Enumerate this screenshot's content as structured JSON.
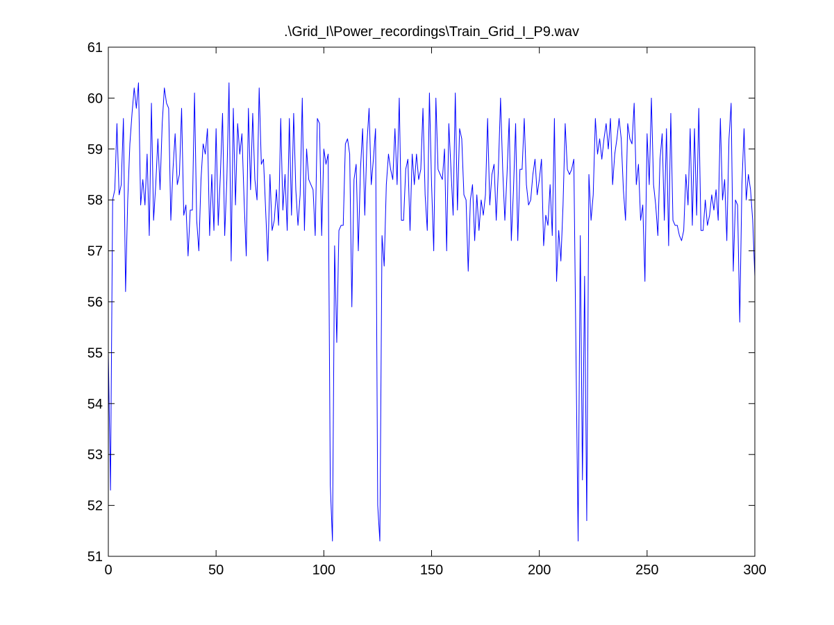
{
  "chart_data": {
    "type": "line",
    "title": ".\\Grid_I\\Power_recordings\\Train_Grid_I_P9.wav",
    "xlabel": "",
    "ylabel": "",
    "xlim": [
      0,
      300
    ],
    "ylim": [
      51,
      61
    ],
    "xticks": [
      0,
      50,
      100,
      150,
      200,
      250,
      300
    ],
    "yticks": [
      51,
      52,
      53,
      54,
      55,
      56,
      57,
      58,
      59,
      60,
      61
    ],
    "grid": false,
    "colors": {
      "line": "#0000ff",
      "axes": "#000000",
      "background": "#ffffff"
    },
    "series": [
      {
        "x": [
          0,
          1,
          2,
          3,
          4,
          5,
          6,
          7,
          8,
          9,
          10,
          11,
          12,
          13,
          14,
          15,
          16,
          17,
          18,
          19,
          20,
          21,
          22,
          23,
          24,
          25,
          26,
          27,
          28,
          29,
          30,
          31,
          32,
          33,
          34,
          35,
          36,
          37,
          38,
          39,
          40,
          41,
          42,
          43,
          44,
          45,
          46,
          47,
          48,
          49,
          50,
          51,
          52,
          53,
          54,
          55,
          56,
          57,
          58,
          59,
          60,
          61,
          62,
          63,
          64,
          65,
          66,
          67,
          68,
          69,
          70,
          71,
          72,
          73,
          74,
          75,
          76,
          77,
          78,
          79,
          80,
          81,
          82,
          83,
          84,
          85,
          86,
          87,
          88,
          89,
          90,
          91,
          92,
          93,
          94,
          95,
          96,
          97,
          98,
          99,
          100,
          101,
          102,
          103,
          104,
          105,
          106,
          107,
          108,
          109,
          110,
          111,
          112,
          113,
          114,
          115,
          116,
          117,
          118,
          119,
          120,
          121,
          122,
          123,
          124,
          125,
          126,
          127,
          128,
          129,
          130,
          131,
          132,
          133,
          134,
          135,
          136,
          137,
          138,
          139,
          140,
          141,
          142,
          143,
          144,
          145,
          146,
          147,
          148,
          149,
          150,
          151,
          152,
          153,
          154,
          155,
          156,
          157,
          158,
          159,
          160,
          161,
          162,
          163,
          164,
          165,
          166,
          167,
          168,
          169,
          170,
          171,
          172,
          173,
          174,
          175,
          176,
          177,
          178,
          179,
          180,
          181,
          182,
          183,
          184,
          185,
          186,
          187,
          188,
          189,
          190,
          191,
          192,
          193,
          194,
          195,
          196,
          197,
          198,
          199,
          200,
          201,
          202,
          203,
          204,
          205,
          206,
          207,
          208,
          209,
          210,
          211,
          212,
          213,
          214,
          215,
          216,
          217,
          218,
          219,
          220,
          221,
          222,
          223,
          224,
          225,
          226,
          227,
          228,
          229,
          230,
          231,
          232,
          233,
          234,
          235,
          236,
          237,
          238,
          239,
          240,
          241,
          242,
          243,
          244,
          245,
          246,
          247,
          248,
          249,
          250,
          251,
          252,
          253,
          254,
          255,
          256,
          257,
          258,
          259,
          260,
          261,
          262,
          263,
          264,
          265,
          266,
          267,
          268,
          269,
          270,
          271,
          272,
          273,
          274,
          275,
          276,
          277,
          278,
          279,
          280,
          281,
          282,
          283,
          284,
          285,
          286,
          287,
          288,
          289,
          290,
          291,
          292,
          293,
          294,
          295,
          296,
          297,
          298,
          299,
          300
        ],
        "values": [
          55.0,
          52.3,
          58.0,
          58.2,
          59.5,
          58.1,
          58.3,
          59.6,
          56.2,
          58.0,
          59.1,
          59.7,
          60.2,
          59.8,
          60.3,
          57.9,
          58.4,
          57.9,
          58.9,
          57.3,
          59.9,
          57.6,
          58.3,
          59.2,
          58.2,
          59.5,
          60.2,
          59.9,
          59.8,
          57.6,
          58.6,
          59.3,
          58.3,
          58.5,
          59.8,
          57.7,
          57.9,
          56.9,
          57.8,
          57.8,
          60.1,
          57.6,
          57.0,
          58.4,
          59.1,
          58.9,
          59.4,
          57.3,
          58.5,
          57.4,
          59.4,
          57.5,
          58.5,
          59.7,
          57.3,
          58.4,
          60.3,
          56.8,
          59.8,
          57.9,
          59.5,
          58.9,
          59.3,
          58.0,
          56.9,
          59.8,
          58.2,
          59.7,
          58.4,
          58.0,
          60.2,
          58.7,
          58.8,
          57.8,
          56.8,
          58.5,
          57.4,
          57.6,
          58.2,
          57.5,
          59.6,
          57.8,
          58.5,
          57.4,
          59.6,
          57.7,
          59.7,
          58.2,
          57.5,
          58.1,
          60.0,
          57.4,
          59.0,
          58.4,
          58.3,
          58.2,
          57.3,
          59.6,
          59.5,
          57.3,
          59.0,
          58.7,
          58.9,
          52.4,
          51.3,
          57.1,
          55.2,
          57.4,
          57.5,
          57.5,
          59.1,
          59.2,
          58.9,
          55.9,
          58.4,
          58.7,
          57.0,
          58.6,
          59.4,
          57.7,
          59.1,
          59.8,
          58.3,
          58.8,
          59.4,
          52.0,
          51.3,
          57.3,
          56.7,
          58.3,
          58.9,
          58.6,
          58.4,
          59.4,
          58.3,
          60.0,
          57.6,
          57.6,
          58.6,
          58.8,
          57.4,
          58.9,
          58.3,
          58.9,
          58.4,
          58.6,
          59.8,
          58.1,
          57.4,
          60.1,
          58.3,
          57.0,
          60.0,
          58.6,
          58.5,
          58.4,
          59.0,
          57.0,
          59.5,
          58.6,
          57.7,
          60.1,
          57.8,
          59.4,
          59.2,
          58.1,
          58.0,
          56.6,
          58.0,
          58.3,
          57.2,
          58.1,
          57.4,
          58.0,
          57.7,
          58.1,
          59.6,
          57.9,
          58.5,
          58.7,
          57.6,
          58.6,
          60.0,
          58.6,
          57.6,
          58.5,
          59.6,
          57.2,
          58.2,
          59.5,
          57.2,
          58.6,
          58.6,
          59.6,
          58.3,
          57.9,
          58.0,
          58.5,
          58.8,
          58.1,
          58.4,
          58.8,
          57.1,
          57.7,
          57.5,
          58.3,
          57.3,
          59.6,
          56.4,
          57.4,
          56.8,
          57.9,
          59.5,
          58.6,
          58.5,
          58.6,
          58.8,
          55.0,
          51.3,
          57.3,
          52.5,
          56.5,
          51.7,
          58.5,
          57.6,
          58.1,
          59.6,
          58.9,
          59.2,
          58.8,
          59.2,
          59.5,
          59.0,
          59.6,
          58.3,
          58.9,
          59.2,
          59.6,
          59.2,
          58.2,
          57.6,
          59.5,
          59.2,
          59.1,
          59.9,
          58.3,
          58.7,
          57.6,
          57.9,
          56.4,
          59.3,
          58.3,
          60.0,
          58.3,
          57.9,
          57.3,
          58.8,
          59.3,
          57.6,
          59.4,
          57.1,
          59.7,
          57.6,
          57.5,
          57.5,
          57.3,
          57.2,
          57.4,
          58.5,
          57.9,
          59.4,
          57.5,
          59.4,
          57.7,
          59.8,
          57.4,
          57.4,
          58.0,
          57.5,
          57.7,
          58.1,
          57.8,
          58.2,
          57.6,
          59.6,
          58.0,
          58.4,
          57.2,
          59.2,
          59.9,
          56.6,
          58.0,
          57.9,
          55.6,
          58.3,
          59.4,
          58.0,
          58.5,
          58.2,
          57.6,
          56.5
        ]
      }
    ]
  }
}
